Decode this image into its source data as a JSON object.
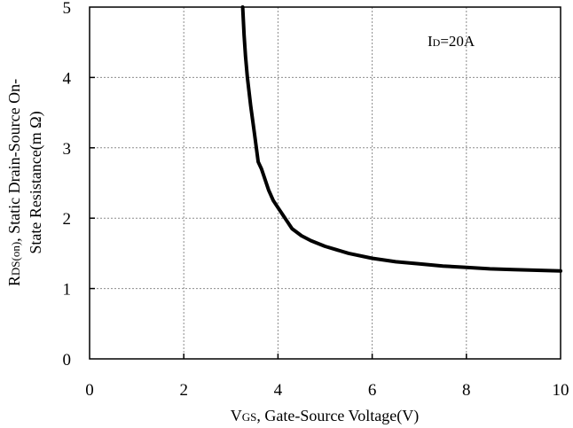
{
  "chart_data": {
    "type": "line",
    "xlabel": {
      "main": "V",
      "sub": "GS",
      "rest": ", Gate-Source Voltage(V)"
    },
    "ylabel": {
      "line1_main": "R",
      "line1_sub": "DS(on)",
      "line1_rest": ", Static Drain-Source On-",
      "line2": "State Resistance(m Ω)"
    },
    "annotation": {
      "main": "I",
      "sub": "D",
      "rest": "=20A"
    },
    "xlim": [
      0,
      10
    ],
    "ylim": [
      0,
      5
    ],
    "xticks": [
      0,
      2,
      4,
      6,
      8,
      10
    ],
    "yticks": [
      0,
      1,
      2,
      3,
      4,
      5
    ],
    "grid": true,
    "series": [
      {
        "x": [
          3.25,
          3.28,
          3.31,
          3.35,
          3.42,
          3.5,
          3.58,
          3.65,
          3.8,
          3.9,
          4.0,
          4.1,
          4.2,
          4.3,
          4.5,
          4.7,
          5.0,
          5.5,
          6.0,
          6.5,
          7.0,
          7.5,
          8.0,
          8.5,
          9.0,
          9.5,
          10.0
        ],
        "y": [
          5.0,
          4.6,
          4.3,
          4.0,
          3.6,
          3.2,
          2.8,
          2.7,
          2.4,
          2.25,
          2.15,
          2.05,
          1.95,
          1.85,
          1.75,
          1.68,
          1.6,
          1.5,
          1.43,
          1.38,
          1.35,
          1.32,
          1.3,
          1.28,
          1.27,
          1.26,
          1.25
        ]
      }
    ]
  }
}
